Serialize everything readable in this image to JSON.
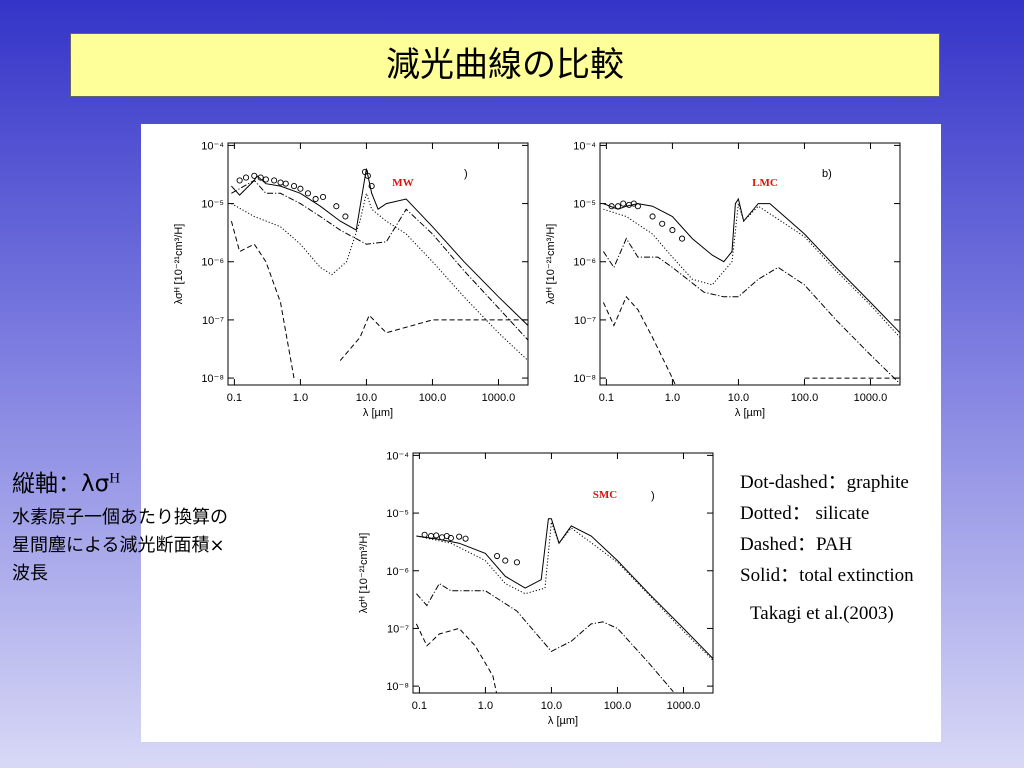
{
  "title": "減光曲線の比較",
  "sidebar": {
    "heading": "縦軸：λσ",
    "heading_sup": "H",
    "lines": [
      "水素原子一個あたり換算の",
      "星間塵による減光断面積×",
      "波長"
    ]
  },
  "legend_notes": [
    "Dot-dashed：graphite",
    "Dotted：  silicate",
    "Dashed：PAH",
    "Solid：total extinction"
  ],
  "citation": "Takagi et al.(2003)",
  "chart_data": [
    {
      "type": "line",
      "label": "MW",
      "panel_letter": ")",
      "xscale": "log",
      "yscale": "log",
      "xlabel": "λ [µm]",
      "ylabel": "λσᴴ [10⁻²¹cm³/H]",
      "xlim": [
        0.08,
        2800
      ],
      "ylim": [
        7.6e-09,
        0.00011
      ],
      "xticks": [
        {
          "value": 0.1,
          "label": "0.1"
        },
        {
          "value": 1,
          "label": "1.0"
        },
        {
          "value": 10,
          "label": "10.0"
        },
        {
          "value": 100,
          "label": "100.0"
        },
        {
          "value": 1000,
          "label": "1000.0"
        }
      ],
      "yticks": [
        {
          "value": 1e-08,
          "label": "10⁻⁸"
        },
        {
          "value": 1e-07,
          "label": "10⁻⁷"
        },
        {
          "value": 1e-06,
          "label": "10⁻⁶"
        },
        {
          "value": 1e-05,
          "label": "10⁻⁵"
        },
        {
          "value": 0.0001,
          "label": "10⁻⁴"
        }
      ],
      "series": [
        {
          "style": "solid",
          "color": "#000000",
          "x": [
            0.09,
            0.12,
            0.2,
            0.22,
            0.3,
            0.5,
            1,
            2,
            4,
            7,
            10,
            12,
            15,
            20,
            40,
            100,
            300,
            1000,
            2800
          ],
          "values": [
            2e-05,
            1.4e-05,
            2.5e-05,
            3e-05,
            2.2e-05,
            2e-05,
            1.5e-05,
            9e-06,
            5e-06,
            3.5e-06,
            4e-05,
            1.5e-05,
            8e-06,
            1e-05,
            1.2e-05,
            4e-06,
            1e-06,
            2.5e-07,
            8e-08
          ]
        },
        {
          "style": "dashdot",
          "color": "#000000",
          "x": [
            0.09,
            0.2,
            0.3,
            0.5,
            1,
            2,
            4,
            10,
            20,
            40,
            100,
            300,
            1000,
            2800
          ],
          "values": [
            1.5e-05,
            2.5e-05,
            1.5e-05,
            1.5e-05,
            1e-05,
            6e-06,
            3.5e-06,
            2e-06,
            2.2e-06,
            8e-06,
            3e-06,
            7e-07,
            1.6e-07,
            4.5e-08
          ]
        },
        {
          "style": "dotted",
          "color": "#000000",
          "x": [
            0.09,
            0.2,
            0.5,
            1,
            2,
            3,
            5,
            8,
            10,
            12,
            20,
            40,
            100,
            300,
            1000,
            2800
          ],
          "values": [
            1e-05,
            6e-06,
            4e-06,
            2e-06,
            8e-07,
            6e-07,
            1e-06,
            5e-06,
            1.5e-05,
            8e-06,
            5e-06,
            3e-06,
            1e-06,
            2.5e-07,
            6e-08,
            2e-08
          ]
        },
        {
          "style": "dashed",
          "color": "#000000",
          "x": [
            0.09,
            0.12,
            0.2,
            0.3,
            0.5,
            0.8,
            1,
            4,
            8,
            11,
            20,
            100,
            2800
          ],
          "values": [
            5e-06,
            1.5e-06,
            2e-06,
            1e-06,
            2e-07,
            1e-08,
            null,
            2e-08,
            5e-08,
            1.2e-07,
            6e-08,
            1e-07,
            1e-07
          ]
        },
        {
          "style": "markers",
          "color": "#000000",
          "x": [
            0.12,
            0.15,
            0.2,
            0.25,
            0.3,
            0.4,
            0.5,
            0.6,
            0.8,
            1,
            1.3,
            1.7,
            2.2,
            3.5,
            4.8,
            9.5,
            10.5,
            12
          ],
          "values": [
            2.5e-05,
            2.8e-05,
            3e-05,
            2.8e-05,
            2.6e-05,
            2.5e-05,
            2.3e-05,
            2.2e-05,
            2e-05,
            1.8e-05,
            1.5e-05,
            1.2e-05,
            1.3e-05,
            9e-06,
            6e-06,
            3.5e-05,
            3e-05,
            2e-05
          ]
        }
      ]
    },
    {
      "type": "line",
      "label": "LMC",
      "panel_letter": "b)",
      "xscale": "log",
      "yscale": "log",
      "xlabel": "λ [µm]",
      "ylabel": "λσᴴ [10⁻²¹cm³/H]",
      "xlim": [
        0.08,
        2800
      ],
      "ylim": [
        7.6e-09,
        0.00011
      ],
      "xticks": [
        {
          "value": 0.1,
          "label": "0.1"
        },
        {
          "value": 1,
          "label": "1.0"
        },
        {
          "value": 10,
          "label": "10.0"
        },
        {
          "value": 100,
          "label": "100.0"
        },
        {
          "value": 1000,
          "label": "1000.0"
        }
      ],
      "yticks": [
        {
          "value": 1e-08,
          "label": "10⁻⁸"
        },
        {
          "value": 1e-07,
          "label": "10⁻⁷"
        },
        {
          "value": 1e-06,
          "label": "10⁻⁶"
        },
        {
          "value": 1e-05,
          "label": "10⁻⁵"
        },
        {
          "value": 0.0001,
          "label": "10⁻⁴"
        }
      ],
      "series": [
        {
          "style": "solid",
          "color": "#000000",
          "x": [
            0.09,
            0.15,
            0.2,
            0.3,
            0.5,
            1,
            2,
            4,
            6,
            8,
            9,
            10,
            12,
            20,
            30,
            100,
            300,
            1000,
            2800
          ],
          "values": [
            1e-05,
            8e-06,
            9e-06,
            1e-05,
            9e-06,
            6e-06,
            2.5e-06,
            1.3e-06,
            1e-06,
            1.5e-06,
            1e-05,
            1.2e-05,
            5e-06,
            1e-05,
            1e-05,
            3e-06,
            8e-07,
            2e-07,
            6e-08
          ]
        },
        {
          "style": "dashdot",
          "color": "#000000",
          "x": [
            0.09,
            0.13,
            0.2,
            0.3,
            0.6,
            1,
            3,
            6,
            10,
            20,
            40,
            100,
            300,
            1000,
            2800
          ],
          "values": [
            1.5e-06,
            8e-07,
            2.5e-06,
            1.2e-06,
            1.2e-06,
            8e-07,
            3e-07,
            2.5e-07,
            2.5e-07,
            5e-07,
            8e-07,
            4e-07,
            1e-07,
            2.5e-08,
            8e-09
          ]
        },
        {
          "style": "dotted",
          "color": "#000000",
          "x": [
            0.09,
            0.2,
            0.5,
            1,
            2,
            4,
            8,
            10,
            12,
            20,
            100,
            300,
            1000,
            2800
          ],
          "values": [
            8e-06,
            6e-06,
            3e-06,
            1.2e-06,
            5e-07,
            4e-07,
            1e-06,
            1e-05,
            5e-06,
            9e-06,
            2.7e-06,
            7e-07,
            1.8e-07,
            5e-08
          ]
        },
        {
          "style": "dashed",
          "color": "#000000",
          "x": [
            0.09,
            0.13,
            0.2,
            0.3,
            0.5,
            1,
            1.3,
            30,
            100,
            2800
          ],
          "values": [
            2e-07,
            8e-08,
            2.5e-07,
            1.5e-07,
            5e-08,
            1e-08,
            5e-09,
            null,
            1e-08,
            1e-08
          ]
        },
        {
          "style": "markers",
          "color": "#000000",
          "x": [
            0.12,
            0.15,
            0.18,
            0.22,
            0.26,
            0.3,
            0.5,
            0.7,
            1,
            1.4
          ],
          "values": [
            9e-06,
            9e-06,
            1e-05,
            9.5e-06,
            1e-05,
            9e-06,
            6e-06,
            4.5e-06,
            3.5e-06,
            2.5e-06
          ]
        }
      ]
    },
    {
      "type": "line",
      "label": "SMC",
      "panel_letter": ")",
      "xscale": "log",
      "yscale": "log",
      "xlabel": "λ [µm]",
      "ylabel": "λσᴴ [10⁻²¹cm³/H]",
      "xlim": [
        0.08,
        2800
      ],
      "ylim": [
        7.6e-09,
        0.00011
      ],
      "xticks": [
        {
          "value": 0.1,
          "label": "0.1"
        },
        {
          "value": 1,
          "label": "1.0"
        },
        {
          "value": 10,
          "label": "10.0"
        },
        {
          "value": 100,
          "label": "100.0"
        },
        {
          "value": 1000,
          "label": "1000.0"
        }
      ],
      "yticks": [
        {
          "value": 1e-08,
          "label": "10⁻⁸"
        },
        {
          "value": 1e-07,
          "label": "10⁻⁷"
        },
        {
          "value": 1e-06,
          "label": "10⁻⁶"
        },
        {
          "value": 1e-05,
          "label": "10⁻⁵"
        },
        {
          "value": 0.0001,
          "label": "10⁻⁴"
        }
      ],
      "series": [
        {
          "style": "solid",
          "color": "#000000",
          "x": [
            0.09,
            0.2,
            0.4,
            1,
            2,
            4,
            7,
            9,
            10,
            13,
            20,
            40,
            100,
            300,
            1000,
            2800
          ],
          "values": [
            4e-06,
            3.5e-06,
            3e-06,
            2e-06,
            8e-07,
            5e-07,
            7e-07,
            8e-06,
            8e-06,
            3e-06,
            6e-06,
            4e-06,
            1.5e-06,
            4e-07,
            1e-07,
            3e-08
          ]
        },
        {
          "style": "dashdot",
          "color": "#000000",
          "x": [
            0.09,
            0.13,
            0.2,
            0.3,
            1,
            3,
            10,
            20,
            40,
            60,
            100,
            300,
            700
          ],
          "values": [
            4e-07,
            2.5e-07,
            6e-07,
            4.5e-07,
            4.5e-07,
            2e-07,
            4e-08,
            6e-08,
            1.2e-07,
            1.3e-07,
            1e-07,
            2.5e-08,
            8e-09
          ]
        },
        {
          "style": "dotted",
          "color": "#000000",
          "x": [
            0.09,
            0.3,
            1,
            2,
            4,
            8,
            10,
            13,
            20,
            100,
            300,
            1000,
            2800
          ],
          "values": [
            4e-06,
            3e-06,
            1.5e-06,
            6e-07,
            4e-07,
            5e-07,
            7e-06,
            3e-06,
            5.5e-06,
            1.4e-06,
            3.8e-07,
            9e-08,
            2.8e-08
          ]
        },
        {
          "style": "dashed",
          "color": "#000000",
          "x": [
            0.09,
            0.13,
            0.2,
            0.4,
            0.7,
            1.3,
            1.5
          ],
          "values": [
            1.2e-07,
            5e-08,
            8e-08,
            1e-07,
            5e-08,
            1.5e-08,
            7e-09
          ]
        },
        {
          "style": "markers",
          "color": "#000000",
          "x": [
            0.12,
            0.15,
            0.18,
            0.22,
            0.26,
            0.3,
            0.4,
            0.5,
            1.5,
            2,
            3
          ],
          "values": [
            4.2e-06,
            4e-06,
            4.1e-06,
            3.8e-06,
            4e-06,
            3.7e-06,
            3.9e-06,
            3.6e-06,
            1.8e-06,
            1.5e-06,
            1.4e-06
          ]
        }
      ]
    }
  ]
}
